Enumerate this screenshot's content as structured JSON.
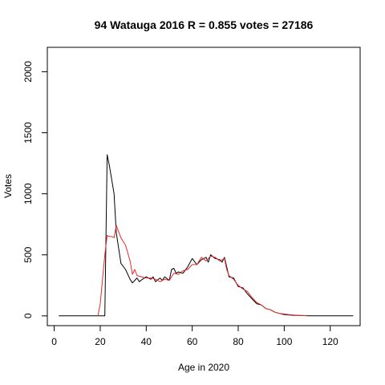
{
  "chart_data": {
    "type": "line",
    "title": "94 Watauga 2016 R = 0.855 votes = 27186",
    "xlabel": "Age in 2020",
    "ylabel": "Votes",
    "xlim": [
      -3,
      133
    ],
    "ylim": [
      -80,
      2200
    ],
    "xticks": [
      0,
      20,
      40,
      60,
      80,
      100,
      120
    ],
    "yticks": [
      0,
      500,
      1000,
      1500,
      2000
    ],
    "grid": false,
    "legend": "none",
    "series": [
      {
        "color": "#000000",
        "points": [
          [
            2,
            0
          ],
          [
            18,
            0
          ],
          [
            20,
            0
          ],
          [
            21,
            0
          ],
          [
            22,
            0
          ],
          [
            23,
            1320
          ],
          [
            24,
            1230
          ],
          [
            26,
            1000
          ],
          [
            27,
            680
          ],
          [
            29,
            430
          ],
          [
            31,
            380
          ],
          [
            33,
            300
          ],
          [
            34,
            270
          ],
          [
            36,
            310
          ],
          [
            37,
            280
          ],
          [
            38,
            295
          ],
          [
            40,
            320
          ],
          [
            42,
            300
          ],
          [
            43,
            320
          ],
          [
            44,
            280
          ],
          [
            46,
            310
          ],
          [
            47,
            290
          ],
          [
            48,
            320
          ],
          [
            50,
            290
          ],
          [
            51,
            380
          ],
          [
            52,
            390
          ],
          [
            53,
            350
          ],
          [
            54,
            360
          ],
          [
            56,
            350
          ],
          [
            58,
            400
          ],
          [
            60,
            470
          ],
          [
            62,
            420
          ],
          [
            64,
            460
          ],
          [
            66,
            480
          ],
          [
            67,
            440
          ],
          [
            68,
            500
          ],
          [
            70,
            470
          ],
          [
            72,
            460
          ],
          [
            73,
            440
          ],
          [
            74,
            480
          ],
          [
            75,
            400
          ],
          [
            76,
            320
          ],
          [
            78,
            310
          ],
          [
            80,
            240
          ],
          [
            82,
            230
          ],
          [
            84,
            180
          ],
          [
            86,
            140
          ],
          [
            88,
            100
          ],
          [
            90,
            90
          ],
          [
            92,
            60
          ],
          [
            94,
            50
          ],
          [
            96,
            30
          ],
          [
            98,
            20
          ],
          [
            100,
            10
          ],
          [
            104,
            5
          ],
          [
            108,
            2
          ],
          [
            112,
            0
          ],
          [
            130,
            0
          ]
        ]
      },
      {
        "color": "#e8292a",
        "points": [
          [
            19,
            0
          ],
          [
            20,
            100
          ],
          [
            21,
            300
          ],
          [
            22,
            500
          ],
          [
            23,
            660
          ],
          [
            24,
            650
          ],
          [
            25,
            650
          ],
          [
            26,
            640
          ],
          [
            27,
            740
          ],
          [
            28,
            690
          ],
          [
            29,
            640
          ],
          [
            30,
            610
          ],
          [
            31,
            580
          ],
          [
            33,
            450
          ],
          [
            34,
            340
          ],
          [
            35,
            380
          ],
          [
            36,
            330
          ],
          [
            38,
            320
          ],
          [
            40,
            310
          ],
          [
            42,
            310
          ],
          [
            44,
            300
          ],
          [
            46,
            280
          ],
          [
            48,
            300
          ],
          [
            50,
            290
          ],
          [
            52,
            350
          ],
          [
            54,
            340
          ],
          [
            56,
            370
          ],
          [
            58,
            380
          ],
          [
            60,
            420
          ],
          [
            62,
            420
          ],
          [
            64,
            480
          ],
          [
            66,
            450
          ],
          [
            68,
            490
          ],
          [
            70,
            480
          ],
          [
            72,
            450
          ],
          [
            74,
            470
          ],
          [
            75,
            380
          ],
          [
            76,
            330
          ],
          [
            78,
            300
          ],
          [
            80,
            250
          ],
          [
            82,
            220
          ],
          [
            84,
            200
          ],
          [
            86,
            150
          ],
          [
            88,
            110
          ],
          [
            90,
            90
          ],
          [
            92,
            60
          ],
          [
            94,
            50
          ],
          [
            96,
            30
          ],
          [
            98,
            20
          ],
          [
            100,
            15
          ],
          [
            102,
            10
          ],
          [
            106,
            5
          ],
          [
            110,
            2
          ]
        ]
      }
    ]
  }
}
